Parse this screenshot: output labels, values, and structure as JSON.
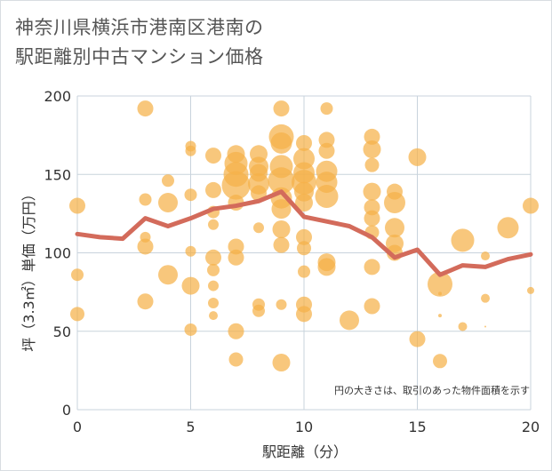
{
  "title_line1": "神奈川県横浜市港南区港南の",
  "title_line2": "駅距離別中古マンション価格",
  "note": "円の大きさは、取引のあった物件面積を示す",
  "colors": {
    "bubble": "#f5b14a",
    "line": "#d36b5b",
    "grid": "#c8d3dc",
    "plot_bg": "#ffffff"
  },
  "chart_data": {
    "type": "scatter",
    "title": "神奈川県横浜市港南区港南の駅距離別中古マンション価格",
    "xlabel": "駅距離（分）",
    "ylabel": "坪（3.3㎡）単価（万円）",
    "xlim": [
      0,
      20
    ],
    "ylim": [
      0,
      200
    ],
    "x_ticks": [
      0,
      5,
      10,
      15,
      20
    ],
    "y_ticks": [
      0,
      50,
      100,
      150,
      200
    ],
    "trend_line": {
      "x": [
        0,
        1,
        2,
        3,
        4,
        5,
        6,
        7,
        8,
        9,
        10,
        11,
        12,
        13,
        14,
        15,
        16,
        17,
        18,
        19,
        20
      ],
      "y": [
        112,
        110,
        109,
        122,
        117,
        122,
        128,
        130,
        133,
        139,
        123,
        120,
        117,
        110,
        97,
        102,
        86,
        92,
        91,
        96,
        99
      ]
    },
    "bubbles": [
      {
        "x": 0,
        "y": 130,
        "s": 9
      },
      {
        "x": 0,
        "y": 86,
        "s": 7
      },
      {
        "x": 0,
        "y": 61,
        "s": 8
      },
      {
        "x": 3,
        "y": 192,
        "s": 9
      },
      {
        "x": 3,
        "y": 134,
        "s": 7
      },
      {
        "x": 3,
        "y": 110,
        "s": 6
      },
      {
        "x": 3,
        "y": 104,
        "s": 9
      },
      {
        "x": 3,
        "y": 69,
        "s": 9
      },
      {
        "x": 4,
        "y": 146,
        "s": 7
      },
      {
        "x": 4,
        "y": 132,
        "s": 11
      },
      {
        "x": 4,
        "y": 86,
        "s": 11
      },
      {
        "x": 5,
        "y": 168,
        "s": 6
      },
      {
        "x": 5,
        "y": 165,
        "s": 6
      },
      {
        "x": 5,
        "y": 137,
        "s": 7
      },
      {
        "x": 5,
        "y": 101,
        "s": 6
      },
      {
        "x": 5,
        "y": 79,
        "s": 10
      },
      {
        "x": 5,
        "y": 51,
        "s": 7
      },
      {
        "x": 6,
        "y": 162,
        "s": 9
      },
      {
        "x": 6,
        "y": 140,
        "s": 9
      },
      {
        "x": 6,
        "y": 126,
        "s": 7
      },
      {
        "x": 6,
        "y": 118,
        "s": 6
      },
      {
        "x": 6,
        "y": 97,
        "s": 9
      },
      {
        "x": 6,
        "y": 89,
        "s": 7
      },
      {
        "x": 6,
        "y": 79,
        "s": 6
      },
      {
        "x": 6,
        "y": 68,
        "s": 6
      },
      {
        "x": 6,
        "y": 60,
        "s": 5
      },
      {
        "x": 7,
        "y": 163,
        "s": 10
      },
      {
        "x": 7,
        "y": 157,
        "s": 13
      },
      {
        "x": 7,
        "y": 150,
        "s": 14
      },
      {
        "x": 7,
        "y": 143,
        "s": 16
      },
      {
        "x": 7,
        "y": 132,
        "s": 9
      },
      {
        "x": 7,
        "y": 104,
        "s": 9
      },
      {
        "x": 7,
        "y": 97,
        "s": 9
      },
      {
        "x": 7,
        "y": 50,
        "s": 9
      },
      {
        "x": 7,
        "y": 32,
        "s": 8
      },
      {
        "x": 8,
        "y": 163,
        "s": 10
      },
      {
        "x": 8,
        "y": 155,
        "s": 11
      },
      {
        "x": 8,
        "y": 151,
        "s": 10
      },
      {
        "x": 8,
        "y": 144,
        "s": 12
      },
      {
        "x": 8,
        "y": 138,
        "s": 9
      },
      {
        "x": 8,
        "y": 116,
        "s": 6
      },
      {
        "x": 8,
        "y": 67,
        "s": 7
      },
      {
        "x": 8,
        "y": 63,
        "s": 7
      },
      {
        "x": 9,
        "y": 192,
        "s": 9
      },
      {
        "x": 9,
        "y": 174,
        "s": 14
      },
      {
        "x": 9,
        "y": 170,
        "s": 12
      },
      {
        "x": 9,
        "y": 155,
        "s": 13
      },
      {
        "x": 9,
        "y": 146,
        "s": 15
      },
      {
        "x": 9,
        "y": 135,
        "s": 12
      },
      {
        "x": 9,
        "y": 128,
        "s": 11
      },
      {
        "x": 9,
        "y": 115,
        "s": 10
      },
      {
        "x": 9,
        "y": 105,
        "s": 9
      },
      {
        "x": 9,
        "y": 67,
        "s": 6
      },
      {
        "x": 9,
        "y": 30,
        "s": 10
      },
      {
        "x": 10,
        "y": 170,
        "s": 9
      },
      {
        "x": 10,
        "y": 160,
        "s": 12
      },
      {
        "x": 10,
        "y": 151,
        "s": 12
      },
      {
        "x": 10,
        "y": 145,
        "s": 14
      },
      {
        "x": 10,
        "y": 139,
        "s": 11
      },
      {
        "x": 10,
        "y": 132,
        "s": 10
      },
      {
        "x": 10,
        "y": 110,
        "s": 9
      },
      {
        "x": 10,
        "y": 103,
        "s": 8
      },
      {
        "x": 10,
        "y": 88,
        "s": 7
      },
      {
        "x": 10,
        "y": 67,
        "s": 9
      },
      {
        "x": 10,
        "y": 61,
        "s": 9
      },
      {
        "x": 11,
        "y": 192,
        "s": 7
      },
      {
        "x": 11,
        "y": 172,
        "s": 9
      },
      {
        "x": 11,
        "y": 165,
        "s": 9
      },
      {
        "x": 11,
        "y": 152,
        "s": 12
      },
      {
        "x": 11,
        "y": 145,
        "s": 12
      },
      {
        "x": 11,
        "y": 136,
        "s": 13
      },
      {
        "x": 11,
        "y": 94,
        "s": 10
      },
      {
        "x": 11,
        "y": 91,
        "s": 10
      },
      {
        "x": 12,
        "y": 57,
        "s": 11
      },
      {
        "x": 13,
        "y": 174,
        "s": 9
      },
      {
        "x": 13,
        "y": 166,
        "s": 10
      },
      {
        "x": 13,
        "y": 156,
        "s": 8
      },
      {
        "x": 13,
        "y": 139,
        "s": 10
      },
      {
        "x": 13,
        "y": 129,
        "s": 9
      },
      {
        "x": 13,
        "y": 122,
        "s": 9
      },
      {
        "x": 13,
        "y": 113,
        "s": 8
      },
      {
        "x": 13,
        "y": 91,
        "s": 9
      },
      {
        "x": 13,
        "y": 66,
        "s": 9
      },
      {
        "x": 14,
        "y": 139,
        "s": 9
      },
      {
        "x": 14,
        "y": 132,
        "s": 12
      },
      {
        "x": 14,
        "y": 116,
        "s": 11
      },
      {
        "x": 14,
        "y": 106,
        "s": 10
      },
      {
        "x": 14,
        "y": 100,
        "s": 9
      },
      {
        "x": 15,
        "y": 161,
        "s": 10
      },
      {
        "x": 15,
        "y": 45,
        "s": 9
      },
      {
        "x": 16,
        "y": 80,
        "s": 14
      },
      {
        "x": 16,
        "y": 74,
        "s": 2
      },
      {
        "x": 16,
        "y": 60,
        "s": 2
      },
      {
        "x": 16,
        "y": 31,
        "s": 8
      },
      {
        "x": 17,
        "y": 108,
        "s": 13
      },
      {
        "x": 17,
        "y": 53,
        "s": 5
      },
      {
        "x": 18,
        "y": 98,
        "s": 5
      },
      {
        "x": 18,
        "y": 71,
        "s": 5
      },
      {
        "x": 18,
        "y": 53,
        "s": 1
      },
      {
        "x": 19,
        "y": 116,
        "s": 12
      },
      {
        "x": 20,
        "y": 130,
        "s": 9
      },
      {
        "x": 20,
        "y": 76,
        "s": 4
      }
    ]
  }
}
